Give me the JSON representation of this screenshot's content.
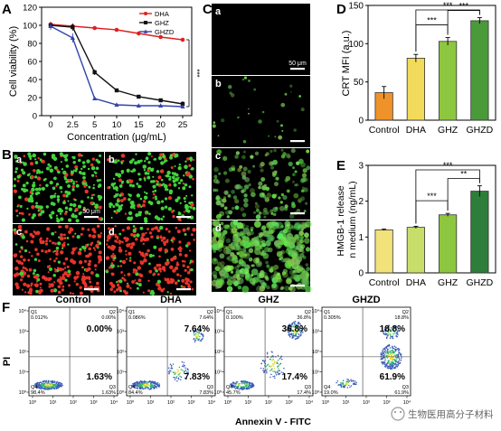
{
  "panel_letters": {
    "A": "A",
    "B": "B",
    "C": "C",
    "D": "D",
    "E": "E",
    "F": "F"
  },
  "chart_data": [
    {
      "id": "A",
      "type": "line",
      "xlabel": "Concentration (μg/mL)",
      "ylabel": "Cell viability (%)",
      "x_ticks": [
        "0",
        "2.5",
        "5",
        "10",
        "15",
        "20",
        "25"
      ],
      "ylim": [
        0,
        120
      ],
      "y_ticks": [
        0,
        20,
        40,
        60,
        80,
        100,
        120
      ],
      "legend_position": "top-right",
      "annotation": "***",
      "series": [
        {
          "name": "DHA",
          "color": "#e02020",
          "marker": "circle",
          "values": [
            101,
            99,
            97,
            95,
            91,
            87,
            84
          ],
          "errors": [
            3,
            2,
            1.5,
            1.5,
            1.5,
            1.5,
            1.5
          ]
        },
        {
          "name": "GHZ",
          "color": "#111111",
          "marker": "square",
          "values": [
            100,
            98,
            48,
            28,
            21,
            17,
            13
          ],
          "errors": [
            3,
            4,
            3,
            2,
            1.5,
            2,
            3
          ]
        },
        {
          "name": "GHZD",
          "color": "#3344aa",
          "marker": "triangle",
          "values": [
            99,
            86,
            19,
            12,
            11,
            11,
            10
          ],
          "errors": [
            4,
            5,
            2,
            1.5,
            1.5,
            1.5,
            2
          ]
        }
      ]
    },
    {
      "id": "D",
      "type": "bar",
      "ylabel": "CRT MFI (a.u.)",
      "categories": [
        "Control",
        "DHA",
        "GHZ",
        "GHZD"
      ],
      "values": [
        36,
        81,
        103,
        130
      ],
      "errors": [
        8,
        5,
        5,
        4
      ],
      "colors": [
        "#f0922a",
        "#f2da5a",
        "#8dc63f",
        "#4a9a3a"
      ],
      "ylim": [
        0,
        150
      ],
      "y_ticks": [
        0,
        50,
        100,
        150
      ],
      "significance": [
        {
          "from": 1,
          "to": 2,
          "label": "***"
        },
        {
          "from": 2,
          "to": 3,
          "label": "***"
        },
        {
          "from": 1,
          "to": 3,
          "label": "***"
        }
      ]
    },
    {
      "id": "E",
      "type": "bar",
      "ylabel": "HMGB-1 release in medium (ng/mL)",
      "categories": [
        "Control",
        "DHA",
        "GHZ",
        "GHZD"
      ],
      "values": [
        1.2,
        1.27,
        1.62,
        2.28
      ],
      "errors": [
        0.02,
        0.03,
        0.04,
        0.15
      ],
      "colors": [
        "#f2e27a",
        "#c8de6a",
        "#8dc63f",
        "#2e7d3a"
      ],
      "ylim": [
        0,
        3
      ],
      "y_ticks": [
        0,
        1,
        2,
        3
      ],
      "significance": [
        {
          "from": 1,
          "to": 2,
          "label": "***"
        },
        {
          "from": 2,
          "to": 3,
          "label": "**"
        },
        {
          "from": 1,
          "to": 3,
          "label": "***"
        }
      ]
    }
  ],
  "panel_B": {
    "tiles": [
      {
        "label": "a",
        "scale": "50 μm"
      },
      {
        "label": "b",
        "scale": ""
      },
      {
        "label": "c",
        "scale": ""
      },
      {
        "label": "d",
        "scale": ""
      }
    ]
  },
  "panel_C": {
    "tiles": [
      {
        "label": "a",
        "scale": "50 μm"
      },
      {
        "label": "b",
        "scale": ""
      },
      {
        "label": "c",
        "scale": ""
      },
      {
        "label": "d",
        "scale": ""
      }
    ]
  },
  "flow": {
    "y_axis_label": "PI",
    "x_axis_label": "Annexin V - FITC",
    "tick_labels": [
      "10⁰",
      "10¹",
      "10²",
      "10³",
      "10⁴"
    ],
    "plots": [
      {
        "title": "Control",
        "q1": "Q1",
        "q2": "Q2",
        "q3": "Q3",
        "q4": "Q4",
        "q1_small": "0.012%",
        "q2_small": "0.00%",
        "q3_small": "1.63%",
        "q4_small": "98.4%",
        "ur": "0.00%",
        "lr": "1.63%"
      },
      {
        "title": "DHA",
        "q1": "Q1",
        "q2": "Q2",
        "q3": "Q3",
        "q4": "Q4",
        "q1_small": "0.086%",
        "q2_small": "7.64%",
        "q3_small": "7.83%",
        "q4_small": "84.4%",
        "ur": "7.64%",
        "lr": "7.83%"
      },
      {
        "title": "GHZ",
        "q1": "Q1",
        "q2": "Q2",
        "q3": "Q3",
        "q4": "Q4",
        "q1_small": "0.100%",
        "q2_small": "36.8%",
        "q3_small": "17.4%",
        "q4_small": "45.7%",
        "ur": "36.8%",
        "lr": "17.4%"
      },
      {
        "title": "GHZD",
        "q1": "Q1",
        "q2": "Q2",
        "q3": "Q3",
        "q4": "Q4",
        "q1_small": "0.305%",
        "q2_small": "18.8%",
        "q3_small": "61.9%",
        "q4_small": "19.0%",
        "ur": "18.8%",
        "lr": "61.9%"
      }
    ]
  },
  "watermark": "生物医用高分子材料"
}
